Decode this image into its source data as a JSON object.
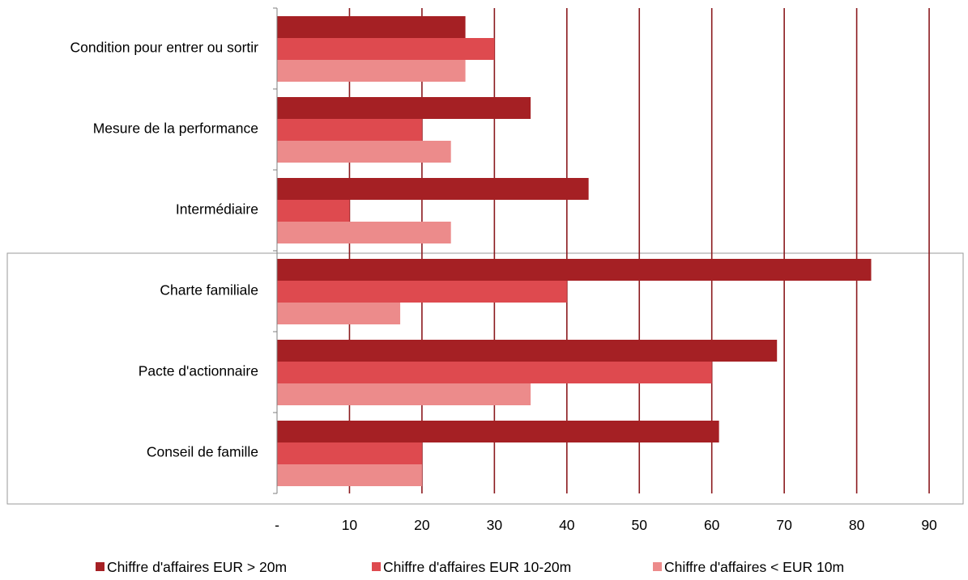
{
  "chart_data": {
    "type": "bar",
    "orientation": "horizontal",
    "title": "",
    "xlabel": "",
    "ylabel": "",
    "categories": [
      "Condition pour entrer ou sortir",
      "Mesure de la performance",
      "Intermédiaire",
      "Charte familiale",
      "Pacte d'actionnaire",
      "Conseil de famille"
    ],
    "series": [
      {
        "name": "Chiffre d'affaires EUR > 20m",
        "color": "#A52024",
        "values": [
          26,
          35,
          43,
          82,
          69,
          61
        ]
      },
      {
        "name": "Chiffre d'affaires EUR 10-20m",
        "color": "#DE4A4F",
        "values": [
          30,
          20,
          10,
          40,
          60,
          20
        ]
      },
      {
        "name": "Chiffre d'affaires < EUR 10m",
        "color": "#EC8B8B",
        "values": [
          26,
          24,
          24,
          17,
          35,
          20
        ]
      }
    ],
    "xlim": [
      0,
      90
    ],
    "x_ticks": [
      0,
      10,
      20,
      30,
      40,
      50,
      60,
      70,
      80,
      90
    ],
    "x_tick_labels": [
      "-",
      "10",
      "20",
      "30",
      "40",
      "50",
      "60",
      "70",
      "80",
      "90"
    ],
    "grid": true,
    "grid_color": "#8B1A1E",
    "legend_position": "bottom",
    "highlight_box_categories": [
      "Charte familiale",
      "Pacte d'actionnaire",
      "Conseil de famille"
    ]
  }
}
